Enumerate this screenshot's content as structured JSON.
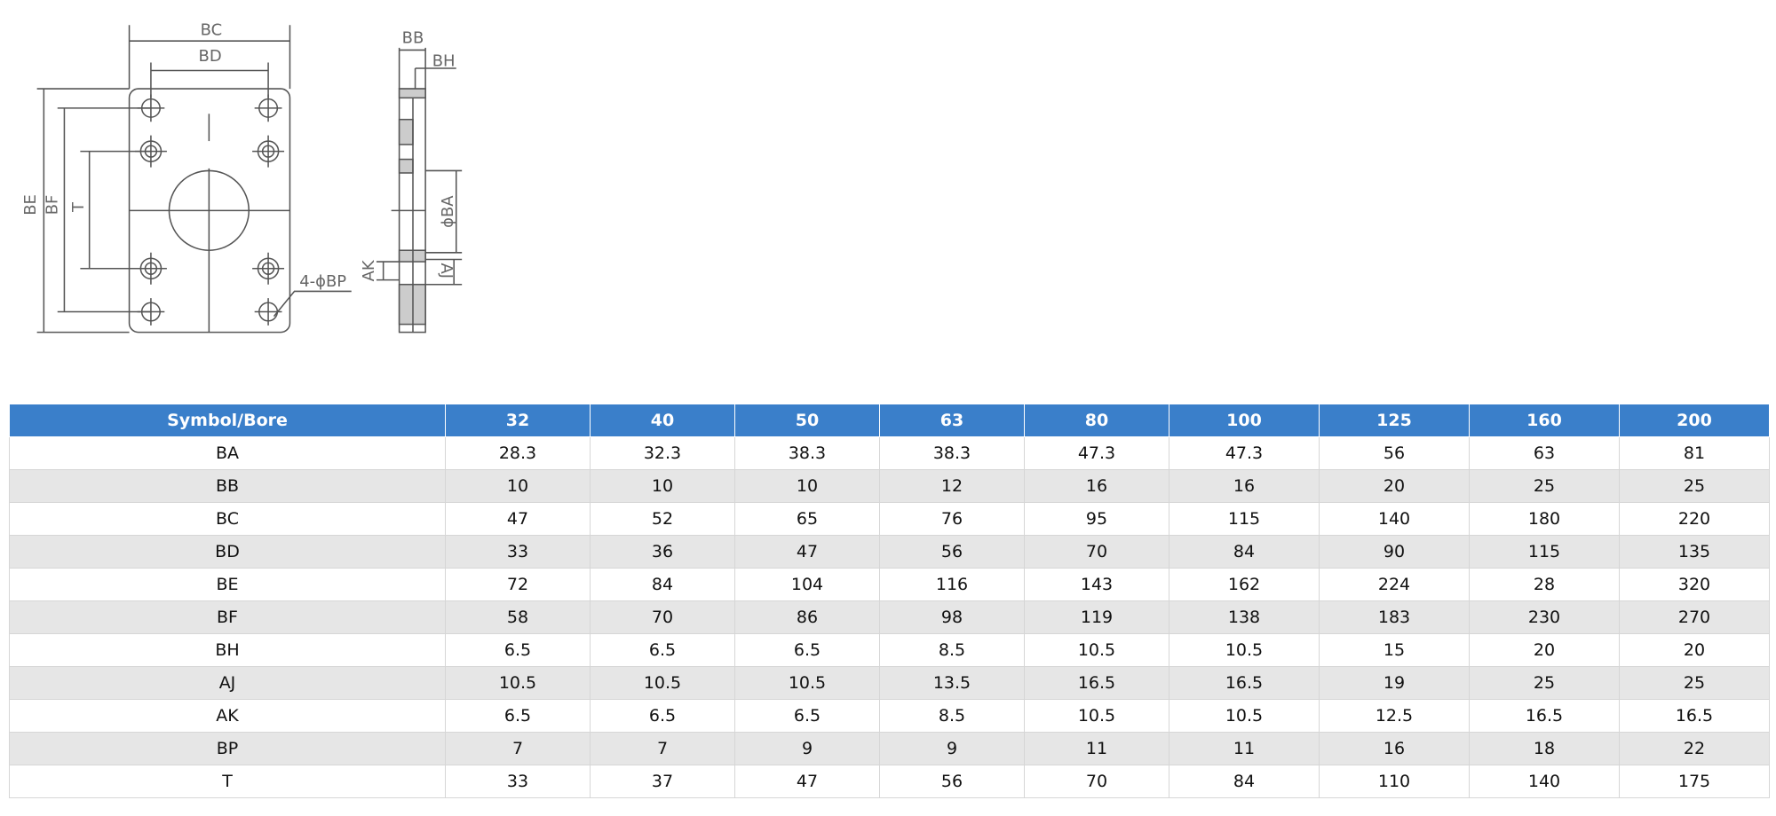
{
  "drawing": {
    "labels": [
      "BC",
      "BD",
      "BE",
      "BF",
      "T",
      "4-ϕBP",
      "BB",
      "BH",
      "ϕBA",
      "AK",
      "AJ"
    ]
  },
  "table": {
    "header": [
      "Symbol/Bore",
      "32",
      "40",
      "50",
      "63",
      "80",
      "100",
      "125",
      "160",
      "200"
    ],
    "rows": [
      [
        "BA",
        28.3,
        32.3,
        38.3,
        38.3,
        47.3,
        47.3,
        56,
        63,
        81
      ],
      [
        "BB",
        10,
        10,
        10,
        12,
        16,
        16,
        20,
        25,
        25
      ],
      [
        "BC",
        47,
        52,
        65,
        76,
        95,
        115,
        140,
        180,
        220
      ],
      [
        "BD",
        33,
        36,
        47,
        56,
        70,
        84,
        90,
        115,
        135
      ],
      [
        "BE",
        72,
        84,
        104,
        116,
        143,
        162,
        224,
        28,
        320
      ],
      [
        "BF",
        58,
        70,
        86,
        98,
        119,
        138,
        183,
        230,
        270
      ],
      [
        "BH",
        6.5,
        6.5,
        6.5,
        8.5,
        10.5,
        10.5,
        15,
        20,
        20
      ],
      [
        "AJ",
        10.5,
        10.5,
        10.5,
        13.5,
        16.5,
        16.5,
        19,
        25,
        25
      ],
      [
        "AK",
        6.5,
        6.5,
        6.5,
        8.5,
        10.5,
        10.5,
        12.5,
        16.5,
        16.5
      ],
      [
        "BP",
        7,
        7,
        9,
        9,
        11,
        11,
        16,
        18,
        22
      ],
      [
        "T",
        33,
        37,
        47,
        56,
        70,
        84,
        110,
        140,
        175
      ]
    ]
  }
}
